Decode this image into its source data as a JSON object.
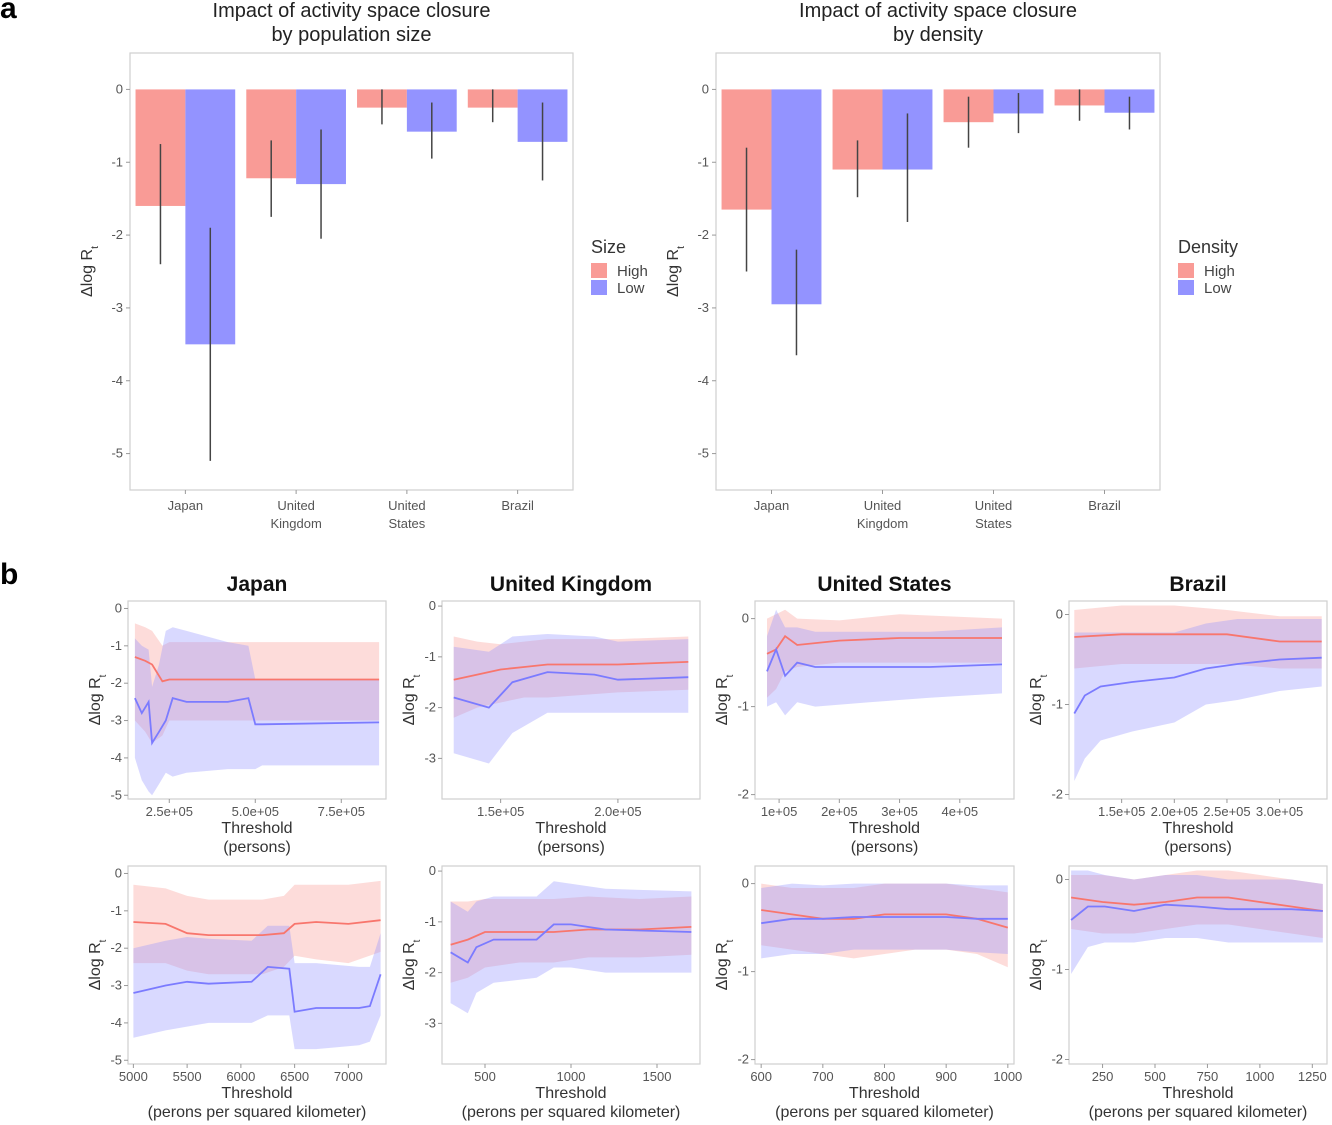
{
  "panels": {
    "a": "a",
    "b": "b"
  },
  "colors": {
    "high": "#f8766d",
    "low": "#7b7bff",
    "high_fill": "#f99b96",
    "low_fill": "#9393ff"
  },
  "chart_data": [
    {
      "type": "bar",
      "title": "Impact of activity space closure\nby population size",
      "ylabel": "Δlog R_t",
      "categories": [
        "Japan",
        "United\nKingdom",
        "United\nStates",
        "Brazil"
      ],
      "ylim": [
        -5.5,
        0.5
      ],
      "yticks": [
        0,
        -1,
        -2,
        -3,
        -4,
        -5
      ],
      "legend": {
        "title": "Size",
        "position": "right",
        "items": [
          "High",
          "Low"
        ]
      },
      "series": [
        {
          "name": "High",
          "values": [
            -1.6,
            -1.22,
            -0.25,
            -0.25
          ],
          "ci_low": [
            -2.4,
            -1.75,
            -0.48,
            -0.45
          ],
          "ci_high": [
            -0.75,
            -0.7,
            0,
            0
          ]
        },
        {
          "name": "Low",
          "values": [
            -3.5,
            -1.3,
            -0.58,
            -0.72
          ],
          "ci_low": [
            -5.1,
            -2.05,
            -0.95,
            -1.25
          ],
          "ci_high": [
            -1.9,
            -0.55,
            -0.18,
            -0.18
          ]
        }
      ]
    },
    {
      "type": "bar",
      "title": "Impact of activity space closure\nby density",
      "ylabel": "Δlog R_t",
      "categories": [
        "Japan",
        "United\nKingdom",
        "United\nStates",
        "Brazil"
      ],
      "ylim": [
        -5.5,
        0.5
      ],
      "yticks": [
        0,
        -1,
        -2,
        -3,
        -4,
        -5
      ],
      "legend": {
        "title": "Density",
        "position": "right",
        "items": [
          "High",
          "Low"
        ]
      },
      "series": [
        {
          "name": "High",
          "values": [
            -1.65,
            -1.1,
            -0.45,
            -0.22
          ],
          "ci_low": [
            -2.5,
            -1.48,
            -0.8,
            -0.43
          ],
          "ci_high": [
            -0.8,
            -0.7,
            -0.1,
            0
          ]
        },
        {
          "name": "Low",
          "values": [
            -2.95,
            -1.1,
            -0.33,
            -0.32
          ],
          "ci_low": [
            -3.65,
            -1.82,
            -0.6,
            -0.55
          ],
          "ci_high": [
            -2.2,
            -0.33,
            -0.05,
            -0.1
          ]
        }
      ]
    },
    {
      "type": "line",
      "title": "Japan",
      "xlabel": "Threshold\n(persons)",
      "ylabel": "Δlog R_t",
      "xlim": [
        130000,
        880000
      ],
      "ylim": [
        -5.1,
        0.2
      ],
      "xticks": [
        250000,
        500000,
        750000
      ],
      "xtick_labels": [
        "2.5e+05",
        "5.0e+05",
        "7.5e+05"
      ],
      "yticks": [
        0,
        -1,
        -2,
        -3,
        -4,
        -5
      ],
      "series": [
        {
          "name": "High",
          "x": [
            150000,
            180000,
            200000,
            230000,
            250000,
            500000,
            550000,
            860000
          ],
          "y": [
            -1.3,
            -1.4,
            -1.5,
            -1.95,
            -1.9,
            -1.9,
            -1.9,
            -1.9
          ],
          "lo": [
            -3.0,
            -3.3,
            -3.6,
            -3.4,
            -3.0,
            -3.0,
            -3.0,
            -3.0
          ],
          "hi": [
            -0.4,
            -0.5,
            -0.6,
            -1.0,
            -0.9,
            -0.9,
            -0.9,
            -0.9
          ]
        },
        {
          "name": "Low",
          "x": [
            150000,
            170000,
            190000,
            200000,
            220000,
            240000,
            260000,
            300000,
            420000,
            480000,
            500000,
            520000,
            860000
          ],
          "y": [
            -2.4,
            -2.8,
            -2.5,
            -3.6,
            -3.3,
            -3.0,
            -2.4,
            -2.5,
            -2.5,
            -2.4,
            -3.1,
            -3.1,
            -3.05
          ],
          "lo": [
            -4.0,
            -4.6,
            -4.9,
            -5.0,
            -4.7,
            -4.4,
            -4.5,
            -4.4,
            -4.3,
            -4.3,
            -4.3,
            -4.2,
            -4.2
          ],
          "hi": [
            -0.8,
            -1.0,
            -1.1,
            -2.1,
            -1.5,
            -0.6,
            -0.5,
            -0.6,
            -0.9,
            -1.0,
            -1.9,
            -1.9,
            -1.9
          ]
        }
      ]
    },
    {
      "type": "line",
      "title": "United Kingdom",
      "xlabel": "Threshold\n(persons)",
      "ylabel": "Δlog R_t",
      "xlim": [
        125000,
        235000
      ],
      "ylim": [
        -3.8,
        0.1
      ],
      "xticks": [
        150000,
        200000
      ],
      "xtick_labels": [
        "1.5e+05",
        "2.0e+05"
      ],
      "yticks": [
        0,
        -1,
        -2,
        -3
      ],
      "series": [
        {
          "name": "High",
          "x": [
            130000,
            140000,
            150000,
            160000,
            170000,
            200000,
            230000
          ],
          "y": [
            -1.45,
            -1.35,
            -1.25,
            -1.2,
            -1.15,
            -1.15,
            -1.1
          ],
          "lo": [
            -2.2,
            -2.0,
            -1.9,
            -1.8,
            -1.8,
            -1.7,
            -1.65
          ],
          "hi": [
            -0.6,
            -0.7,
            -0.75,
            -0.7,
            -0.65,
            -0.65,
            -0.6
          ]
        },
        {
          "name": "Low",
          "x": [
            130000,
            145000,
            155000,
            170000,
            190000,
            200000,
            230000
          ],
          "y": [
            -1.8,
            -2.0,
            -1.5,
            -1.3,
            -1.35,
            -1.45,
            -1.4
          ],
          "lo": [
            -2.9,
            -3.1,
            -2.5,
            -2.1,
            -2.1,
            -2.1,
            -2.1
          ],
          "hi": [
            -0.8,
            -0.9,
            -0.6,
            -0.55,
            -0.6,
            -0.7,
            -0.65
          ]
        }
      ]
    },
    {
      "type": "line",
      "title": "United States",
      "xlabel": "Threshold\n(persons)",
      "ylabel": "Δlog R_t",
      "xlim": [
        60000,
        490000
      ],
      "ylim": [
        -2.05,
        0.2
      ],
      "xticks": [
        100000,
        200000,
        300000,
        400000
      ],
      "xtick_labels": [
        "1e+05",
        "2e+05",
        "3e+05",
        "4e+05"
      ],
      "yticks": [
        0,
        -1,
        -2
      ],
      "series": [
        {
          "name": "High",
          "x": [
            80000,
            95000,
            110000,
            130000,
            200000,
            300000,
            470000
          ],
          "y": [
            -0.4,
            -0.35,
            -0.2,
            -0.3,
            -0.25,
            -0.22,
            -0.22
          ],
          "lo": [
            -0.9,
            -0.8,
            -0.6,
            -0.55,
            -0.5,
            -0.5,
            -0.5
          ],
          "hi": [
            0.0,
            0.05,
            0.1,
            0.0,
            -0.02,
            0.05,
            0.0
          ]
        },
        {
          "name": "Low",
          "x": [
            80000,
            95000,
            110000,
            130000,
            160000,
            250000,
            350000,
            470000
          ],
          "y": [
            -0.6,
            -0.35,
            -0.65,
            -0.5,
            -0.55,
            -0.55,
            -0.55,
            -0.52
          ],
          "lo": [
            -1.0,
            -0.95,
            -1.1,
            -0.95,
            -1.0,
            -0.95,
            -0.9,
            -0.85
          ],
          "hi": [
            -0.2,
            0.1,
            -0.1,
            -0.1,
            -0.15,
            -0.15,
            -0.15,
            -0.1
          ]
        }
      ]
    },
    {
      "type": "line",
      "title": "Brazil",
      "xlabel": "Threshold\n(persons)",
      "ylabel": "Δlog R_t",
      "xlim": [
        100000,
        345000
      ],
      "ylim": [
        -2.05,
        0.15
      ],
      "xticks": [
        150000,
        200000,
        250000,
        300000
      ],
      "xtick_labels": [
        "1.5e+05",
        "2.0e+05",
        "2.5e+05",
        "3.0e+05"
      ],
      "yticks": [
        0,
        -1,
        -2
      ],
      "series": [
        {
          "name": "High",
          "x": [
            105000,
            150000,
            200000,
            250000,
            300000,
            340000
          ],
          "y": [
            -0.25,
            -0.22,
            -0.22,
            -0.22,
            -0.3,
            -0.3
          ],
          "lo": [
            -0.6,
            -0.55,
            -0.55,
            -0.55,
            -0.6,
            -0.6
          ],
          "hi": [
            0.05,
            0.1,
            0.1,
            0.05,
            -0.02,
            -0.02
          ]
        },
        {
          "name": "Low",
          "x": [
            105000,
            115000,
            130000,
            160000,
            200000,
            230000,
            260000,
            300000,
            340000
          ],
          "y": [
            -1.1,
            -0.9,
            -0.8,
            -0.75,
            -0.7,
            -0.6,
            -0.55,
            -0.5,
            -0.48
          ],
          "lo": [
            -1.85,
            -1.6,
            -1.4,
            -1.3,
            -1.2,
            -1.0,
            -0.95,
            -0.85,
            -0.8
          ],
          "hi": [
            -0.2,
            -0.2,
            -0.2,
            -0.2,
            -0.2,
            -0.1,
            -0.05,
            -0.05,
            -0.05
          ]
        }
      ]
    },
    {
      "type": "line",
      "xlabel": "Threshold\n(perons per squared kilometer)",
      "ylabel": "Δlog R_t",
      "xlim": [
        4950,
        7350
      ],
      "ylim": [
        -5.1,
        0.2
      ],
      "xticks": [
        5000,
        5500,
        6000,
        6500,
        7000
      ],
      "xtick_labels": [
        "5000",
        "5500",
        "6000",
        "6500",
        "7000"
      ],
      "yticks": [
        0,
        -1,
        -2,
        -3,
        -4,
        -5
      ],
      "series": [
        {
          "name": "High",
          "x": [
            5000,
            5300,
            5500,
            5700,
            6200,
            6400,
            6500,
            6700,
            7000,
            7300
          ],
          "y": [
            -1.3,
            -1.35,
            -1.6,
            -1.65,
            -1.65,
            -1.6,
            -1.35,
            -1.3,
            -1.35,
            -1.25
          ],
          "lo": [
            -2.4,
            -2.4,
            -2.6,
            -2.7,
            -2.7,
            -2.5,
            -2.2,
            -2.3,
            -2.4,
            -2.1
          ],
          "hi": [
            -0.3,
            -0.4,
            -0.6,
            -0.7,
            -0.7,
            -0.6,
            -0.3,
            -0.3,
            -0.3,
            -0.2
          ]
        },
        {
          "name": "Low",
          "x": [
            5000,
            5300,
            5500,
            5700,
            6100,
            6250,
            6450,
            6500,
            6700,
            7100,
            7200,
            7300
          ],
          "y": [
            -3.2,
            -3.0,
            -2.9,
            -2.95,
            -2.9,
            -2.5,
            -2.55,
            -3.7,
            -3.6,
            -3.6,
            -3.55,
            -2.7
          ],
          "lo": [
            -4.4,
            -4.2,
            -4.1,
            -4.0,
            -4.0,
            -3.8,
            -3.8,
            -4.7,
            -4.7,
            -4.6,
            -4.5,
            -3.8
          ],
          "hi": [
            -2.0,
            -1.8,
            -1.7,
            -1.75,
            -1.8,
            -1.4,
            -1.4,
            -2.4,
            -2.4,
            -2.5,
            -2.5,
            -1.6
          ]
        }
      ]
    },
    {
      "type": "line",
      "xlabel": "Threshold\n(perons per squared kilometer)",
      "ylabel": "Δlog R_t",
      "xlim": [
        250,
        1750
      ],
      "ylim": [
        -3.8,
        0.1
      ],
      "xticks": [
        500,
        1000,
        1500
      ],
      "xtick_labels": [
        "500",
        "1000",
        "1500"
      ],
      "yticks": [
        0,
        -1,
        -2,
        -3
      ],
      "series": [
        {
          "name": "High",
          "x": [
            300,
            400,
            500,
            700,
            900,
            1100,
            1400,
            1700
          ],
          "y": [
            -1.45,
            -1.35,
            -1.2,
            -1.2,
            -1.2,
            -1.15,
            -1.15,
            -1.1
          ],
          "lo": [
            -2.2,
            -2.1,
            -1.9,
            -1.8,
            -1.8,
            -1.7,
            -1.7,
            -1.65
          ],
          "hi": [
            -0.6,
            -0.6,
            -0.55,
            -0.55,
            -0.55,
            -0.5,
            -0.55,
            -0.5
          ]
        },
        {
          "name": "Low",
          "x": [
            300,
            400,
            450,
            550,
            800,
            900,
            1000,
            1200,
            1700
          ],
          "y": [
            -1.6,
            -1.8,
            -1.5,
            -1.35,
            -1.35,
            -1.05,
            -1.05,
            -1.15,
            -1.2
          ],
          "lo": [
            -2.6,
            -2.8,
            -2.4,
            -2.2,
            -2.1,
            -1.9,
            -1.9,
            -2.0,
            -2.0
          ],
          "hi": [
            -0.6,
            -0.8,
            -0.6,
            -0.5,
            -0.5,
            -0.2,
            -0.25,
            -0.35,
            -0.4
          ]
        }
      ]
    },
    {
      "type": "line",
      "xlabel": "Threshold\n(perons per squared kilometer)",
      "ylabel": "Δlog R_t",
      "xlim": [
        590,
        1010
      ],
      "ylim": [
        -2.05,
        0.2
      ],
      "xticks": [
        600,
        700,
        800,
        900,
        1000
      ],
      "xtick_labels": [
        "600",
        "700",
        "800",
        "900",
        "1000"
      ],
      "yticks": [
        0,
        -1,
        -2
      ],
      "series": [
        {
          "name": "High",
          "x": [
            600,
            650,
            700,
            750,
            800,
            850,
            900,
            950,
            1000
          ],
          "y": [
            -0.3,
            -0.35,
            -0.4,
            -0.4,
            -0.35,
            -0.35,
            -0.35,
            -0.4,
            -0.5
          ],
          "lo": [
            -0.7,
            -0.75,
            -0.8,
            -0.85,
            -0.8,
            -0.75,
            -0.75,
            -0.8,
            -0.95
          ],
          "hi": [
            0.0,
            -0.05,
            -0.05,
            -0.05,
            0.0,
            0.0,
            0.0,
            -0.05,
            -0.1
          ]
        },
        {
          "name": "Low",
          "x": [
            600,
            650,
            700,
            750,
            800,
            850,
            900,
            950,
            1000
          ],
          "y": [
            -0.45,
            -0.4,
            -0.4,
            -0.38,
            -0.38,
            -0.38,
            -0.38,
            -0.4,
            -0.4
          ],
          "lo": [
            -0.85,
            -0.8,
            -0.8,
            -0.75,
            -0.75,
            -0.75,
            -0.75,
            -0.78,
            -0.8
          ],
          "hi": [
            -0.05,
            0.0,
            -0.02,
            0.0,
            0.0,
            0.0,
            0.0,
            -0.02,
            -0.02
          ]
        }
      ]
    },
    {
      "type": "line",
      "xlabel": "Threshold\n(perons per squared kilometer)",
      "ylabel": "Δlog R_t",
      "xlim": [
        90,
        1320
      ],
      "ylim": [
        -2.05,
        0.15
      ],
      "xticks": [
        250,
        500,
        750,
        1000,
        1250
      ],
      "xtick_labels": [
        "250",
        "500",
        "750",
        "1000",
        "1250"
      ],
      "yticks": [
        0,
        -1,
        -2
      ],
      "series": [
        {
          "name": "High",
          "x": [
            100,
            250,
            400,
            550,
            700,
            850,
            1000,
            1150,
            1300
          ],
          "y": [
            -0.2,
            -0.25,
            -0.28,
            -0.25,
            -0.2,
            -0.2,
            -0.25,
            -0.3,
            -0.35
          ],
          "lo": [
            -0.55,
            -0.6,
            -0.6,
            -0.55,
            -0.5,
            -0.5,
            -0.55,
            -0.6,
            -0.65
          ],
          "hi": [
            0.05,
            0.05,
            0.0,
            0.05,
            0.1,
            0.1,
            0.05,
            0.0,
            -0.05
          ]
        },
        {
          "name": "Low",
          "x": [
            100,
            180,
            260,
            400,
            550,
            700,
            850,
            1000,
            1150,
            1300
          ],
          "y": [
            -0.45,
            -0.3,
            -0.3,
            -0.35,
            -0.28,
            -0.3,
            -0.33,
            -0.33,
            -0.33,
            -0.35
          ],
          "lo": [
            -1.05,
            -0.75,
            -0.7,
            -0.7,
            -0.65,
            -0.65,
            -0.7,
            -0.7,
            -0.7,
            -0.7
          ],
          "hi": [
            0.1,
            0.1,
            0.05,
            0.0,
            0.05,
            0.05,
            0.0,
            0.0,
            0.0,
            -0.05
          ]
        }
      ]
    }
  ]
}
